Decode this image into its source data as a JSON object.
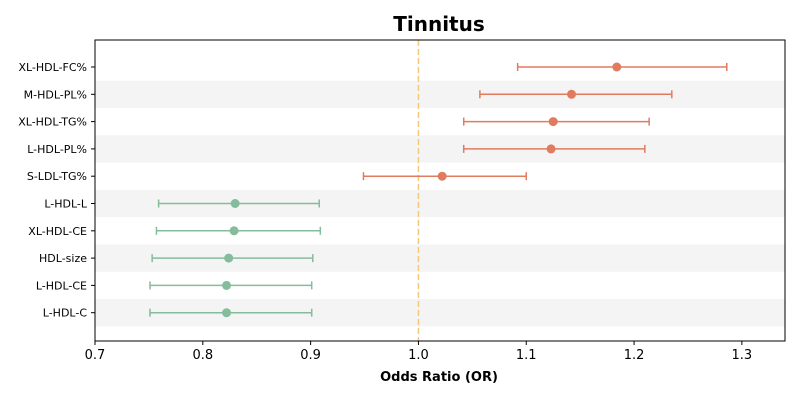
{
  "chart_data": {
    "type": "forest",
    "title": "Tinnitus",
    "xlabel": "Odds Ratio (OR)",
    "xlim": [
      0.7,
      1.34
    ],
    "xticks": [
      "0.7",
      "0.8",
      "0.9",
      "1.0",
      "1.1",
      "1.2",
      "1.3"
    ],
    "reference_line": 1.0,
    "grid": false,
    "colors": {
      "positive": "#E07B5F",
      "negative": "#84BC9C",
      "reference": "#F5C87A",
      "band": "#F4F4F4"
    },
    "rows": [
      {
        "label": "XL-HDL-FC%",
        "or": 1.184,
        "lower": 1.092,
        "upper": 1.286
      },
      {
        "label": "M-HDL-PL%",
        "or": 1.142,
        "lower": 1.057,
        "upper": 1.235
      },
      {
        "label": "XL-HDL-TG%",
        "or": 1.125,
        "lower": 1.042,
        "upper": 1.214
      },
      {
        "label": "L-HDL-PL%",
        "or": 1.123,
        "lower": 1.042,
        "upper": 1.21
      },
      {
        "label": "S-LDL-TG%",
        "or": 1.022,
        "lower": 0.949,
        "upper": 1.1
      },
      {
        "label": "L-HDL-L",
        "or": 0.83,
        "lower": 0.759,
        "upper": 0.908
      },
      {
        "label": "XL-HDL-CE",
        "or": 0.829,
        "lower": 0.757,
        "upper": 0.909
      },
      {
        "label": "HDL-size",
        "or": 0.824,
        "lower": 0.753,
        "upper": 0.902
      },
      {
        "label": "L-HDL-CE",
        "or": 0.822,
        "lower": 0.751,
        "upper": 0.901
      },
      {
        "label": "L-HDL-C",
        "or": 0.822,
        "lower": 0.751,
        "upper": 0.901
      }
    ]
  }
}
